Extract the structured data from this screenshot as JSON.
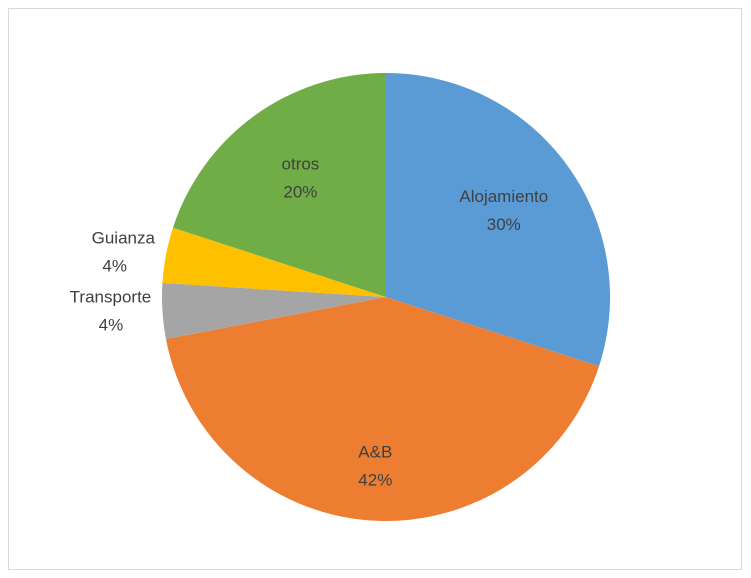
{
  "chart_data": {
    "type": "pie",
    "categories": [
      "Alojamiento",
      "A&B",
      "Transporte",
      "Guianza",
      "otros"
    ],
    "values": [
      30,
      42,
      4,
      4,
      20
    ],
    "value_labels": [
      "30%",
      "42%",
      "4%",
      "4%",
      "20%"
    ],
    "colors": [
      "#5b9bd5",
      "#ed7d31",
      "#a5a5a5",
      "#ffc000",
      "#70ad47"
    ]
  }
}
